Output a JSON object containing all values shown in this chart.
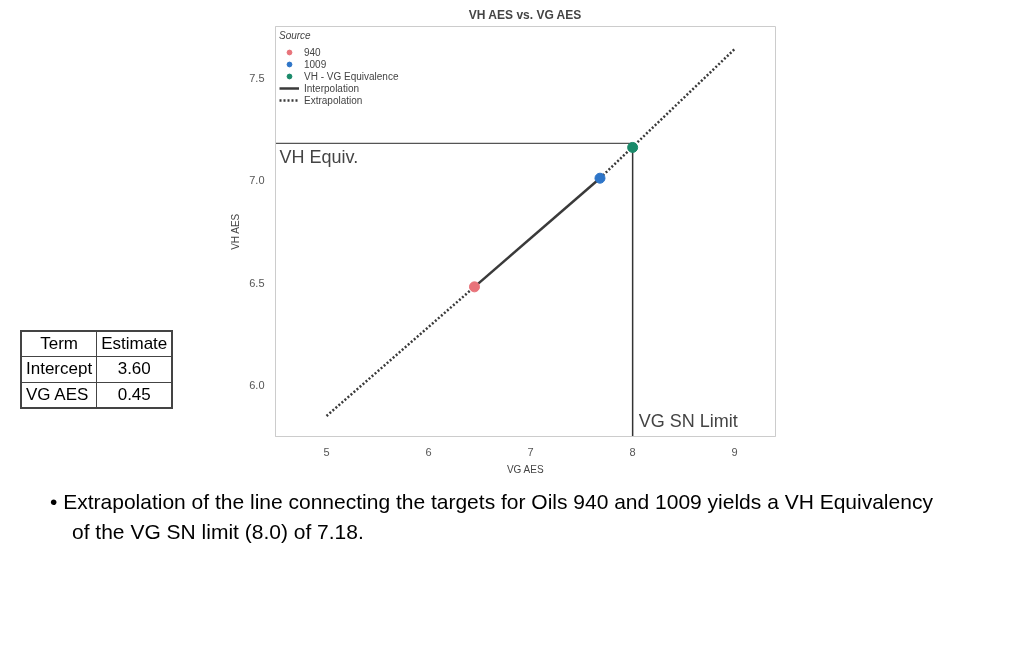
{
  "chart_data": {
    "type": "scatter",
    "title": "VH AES vs. VG AES",
    "xlabel": "VG AES",
    "ylabel": "VH AES",
    "legend_title": "Source",
    "xlim": [
      4.5,
      9.4
    ],
    "ylim": [
      5.75,
      7.75
    ],
    "xticks": [
      5,
      6,
      7,
      8,
      9
    ],
    "yticks": [
      {
        "value": 6,
        "label": "6.0"
      },
      {
        "value": 6.5,
        "label": "6.5"
      },
      {
        "value": 7,
        "label": "7.0"
      },
      {
        "value": 7.5,
        "label": "7.5"
      }
    ],
    "grid": false,
    "legend": "top left",
    "series": [
      {
        "name": "Interpolation",
        "type": "line",
        "color": "#3a3a3a",
        "line_style": "solid",
        "x": [
          6.45,
          7.68
        ],
        "values": [
          6.48,
          7.01
        ]
      },
      {
        "name": "Extrapolation",
        "type": "line",
        "color": "#3a3a3a",
        "line_style": "dotted",
        "x": [
          5,
          6.45,
          7.0,
          7.68,
          9
        ],
        "values": [
          5.85,
          6.48,
          null,
          7.01,
          7.64
        ]
      },
      {
        "name": "940",
        "color": "#e8737a",
        "marker": "circle",
        "x": [
          6.45
        ],
        "values": [
          6.48
        ]
      },
      {
        "name": "1009",
        "color": "#2e75c8",
        "marker": "circle",
        "x": [
          7.68
        ],
        "values": [
          7.01
        ]
      },
      {
        "name": "VH - VG Equivalence",
        "color": "#1a8a6a",
        "marker": "circle",
        "x": [
          8.0
        ],
        "values": [
          7.16
        ]
      }
    ],
    "ref_lines": [
      {
        "axis": "y",
        "value": 7.18,
        "label": "VH Equiv.",
        "color": "#555555"
      },
      {
        "axis": "x",
        "value": 8.0,
        "label": "VG SN Limit",
        "color": "#333333"
      }
    ],
    "annotations": [
      "Term",
      "Estimate",
      "Intercept",
      "3.60",
      "VG AES",
      "0.45",
      "• Extrapolation of the line connecting the targets for Oils 940 and 1009 yields a VH Equivalency of the VG SN limit (8.0) of 7.18."
    ]
  }
}
